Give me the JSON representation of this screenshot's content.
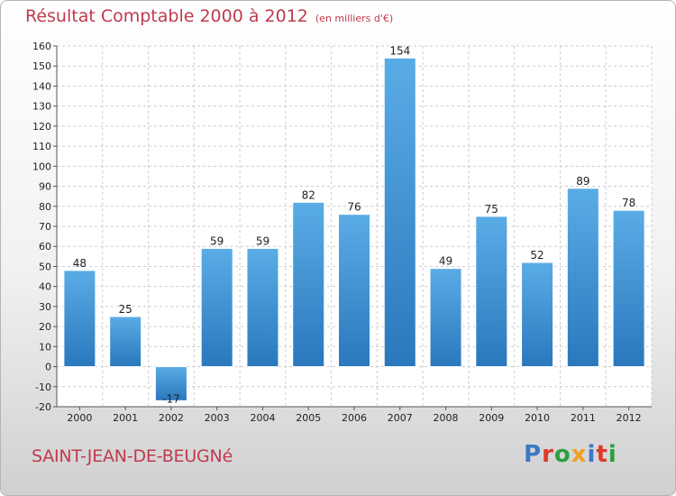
{
  "header": {
    "title": "Résultat Comptable 2000 à 2012",
    "subtitle": "(en milliers d'€)"
  },
  "footer": {
    "commune": "SAINT-JEAN-DE-BEUGNé",
    "logo_letters": [
      "P",
      "r",
      "o",
      "x",
      "i",
      "t",
      "i"
    ],
    "logo_colors": [
      "#3a78c8",
      "#e03a2a",
      "#2e9e3e",
      "#f0a020",
      "#3a78c8",
      "#e03a2a",
      "#2e9e3e"
    ]
  },
  "colors": {
    "bar_light": "#5aace6",
    "bar_dark": "#2a78bd",
    "grid": "#cccccc",
    "text": "#c03a4e"
  },
  "chart_data": {
    "type": "bar",
    "title": "Résultat Comptable 2000 à 2012",
    "subtitle": "(en milliers d'€)",
    "xlabel": "",
    "ylabel": "",
    "categories": [
      "2000",
      "2001",
      "2002",
      "2003",
      "2004",
      "2005",
      "2006",
      "2007",
      "2008",
      "2009",
      "2010",
      "2011",
      "2012"
    ],
    "values": [
      48,
      25,
      -17,
      59,
      59,
      82,
      76,
      154,
      49,
      75,
      52,
      89,
      78
    ],
    "ylim": [
      -20,
      160
    ],
    "yticks": [
      -20,
      -10,
      0,
      10,
      20,
      30,
      40,
      50,
      60,
      70,
      80,
      90,
      100,
      110,
      120,
      130,
      140,
      150,
      160
    ],
    "grid": true,
    "legend": "none"
  }
}
